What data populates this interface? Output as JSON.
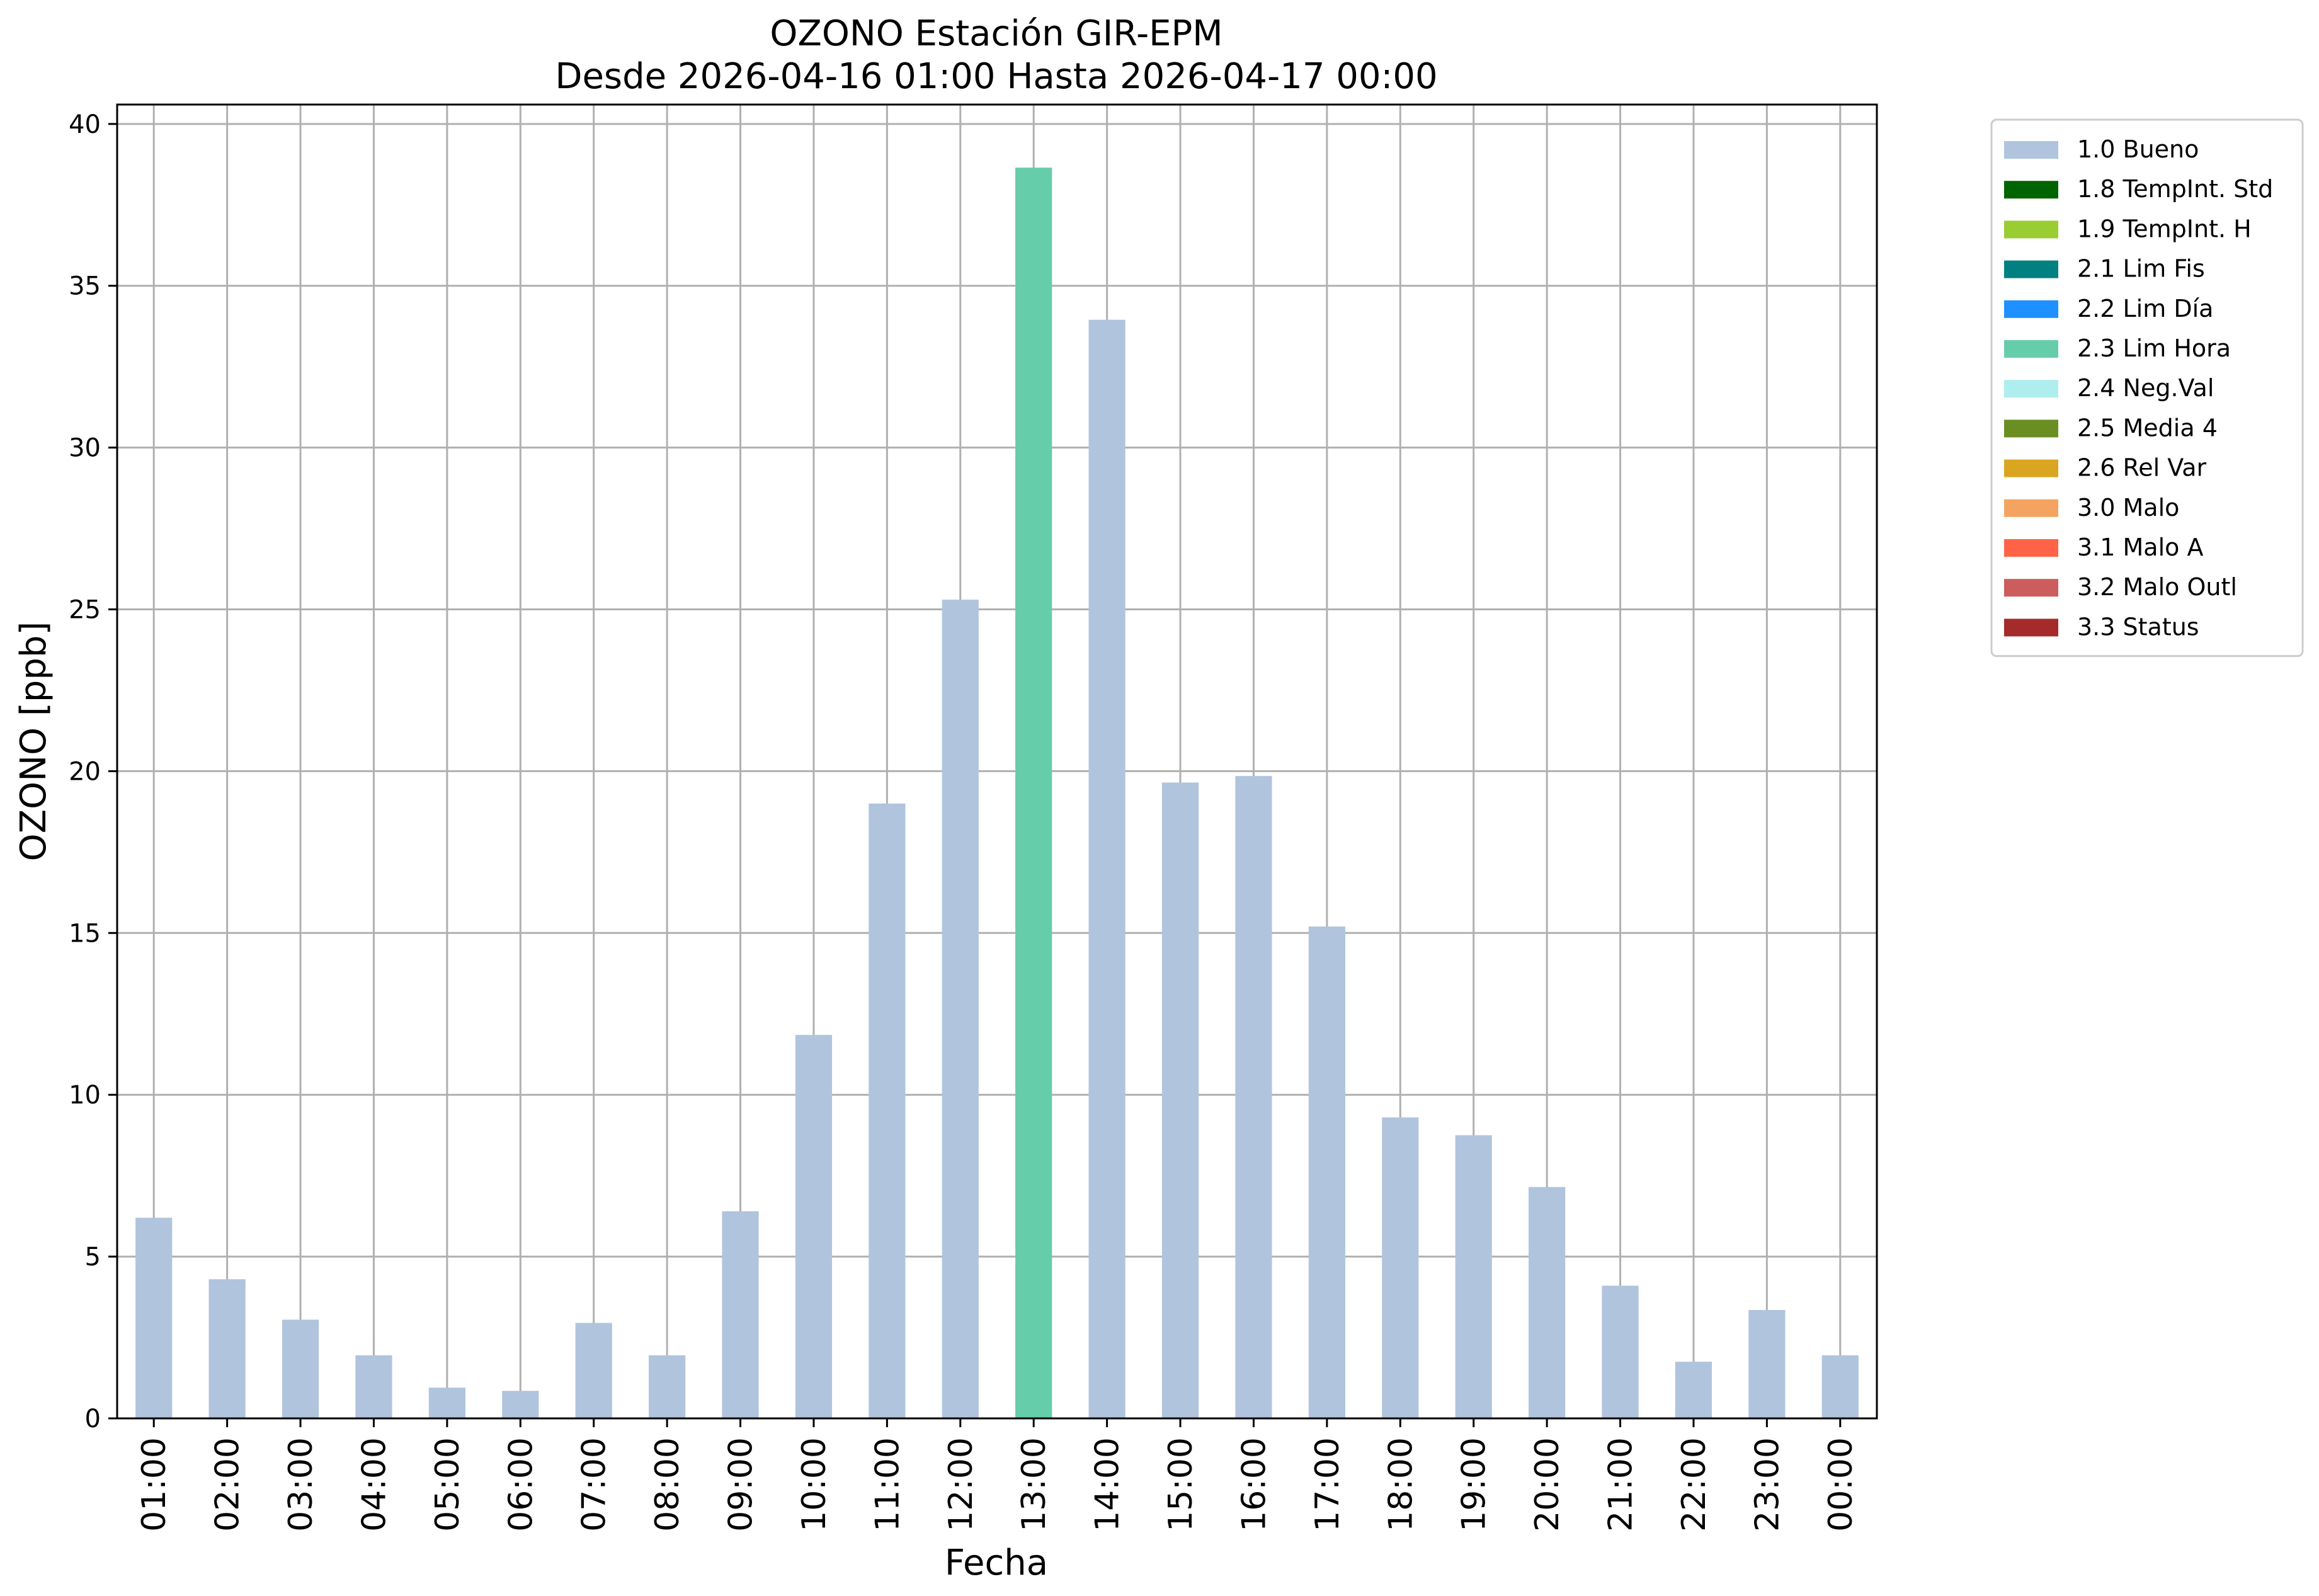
{
  "chart_data": {
    "type": "bar",
    "title": "OZONO Estación GIR-EPM",
    "subtitle": "Desde 2026-04-16 01:00 Hasta 2026-04-17 00:00",
    "xlabel": "Fecha",
    "ylabel": "OZONO [ppb]",
    "ylim": [
      0,
      40.6
    ],
    "yticks": [
      0,
      5,
      10,
      15,
      20,
      25,
      30,
      35,
      40
    ],
    "grid": true,
    "legend_position": "outside-top-right",
    "categories": [
      "01:00",
      "02:00",
      "03:00",
      "04:00",
      "05:00",
      "06:00",
      "07:00",
      "08:00",
      "09:00",
      "10:00",
      "11:00",
      "12:00",
      "13:00",
      "14:00",
      "15:00",
      "16:00",
      "17:00",
      "18:00",
      "19:00",
      "20:00",
      "21:00",
      "22:00",
      "23:00",
      "00:00"
    ],
    "values": [
      6.2,
      4.3,
      3.05,
      1.95,
      0.95,
      0.85,
      2.95,
      1.95,
      6.4,
      11.85,
      19.0,
      25.3,
      38.65,
      33.95,
      19.65,
      19.85,
      15.2,
      9.3,
      8.75,
      7.15,
      4.1,
      1.75,
      3.35,
      1.95
    ],
    "bar_flags": [
      "1.0 Bueno",
      "1.0 Bueno",
      "1.0 Bueno",
      "1.0 Bueno",
      "1.0 Bueno",
      "1.0 Bueno",
      "1.0 Bueno",
      "1.0 Bueno",
      "1.0 Bueno",
      "1.0 Bueno",
      "1.0 Bueno",
      "1.0 Bueno",
      "2.3 Lim Hora",
      "1.0 Bueno",
      "1.0 Bueno",
      "1.0 Bueno",
      "1.0 Bueno",
      "1.0 Bueno",
      "1.0 Bueno",
      "1.0 Bueno",
      "1.0 Bueno",
      "1.0 Bueno",
      "1.0 Bueno",
      "1.0 Bueno"
    ],
    "legend": [
      {
        "label": "1.0 Bueno",
        "color": "#b0c4de"
      },
      {
        "label": "1.8 TempInt. Std",
        "color": "#006400"
      },
      {
        "label": "1.9 TempInt. H",
        "color": "#9acd32"
      },
      {
        "label": "2.1 Lim Fis",
        "color": "#008080"
      },
      {
        "label": "2.2 Lim Día",
        "color": "#1e90ff"
      },
      {
        "label": "2.3 Lim Hora",
        "color": "#66cdaa"
      },
      {
        "label": "2.4 Neg.Val",
        "color": "#afeeee"
      },
      {
        "label": "2.5 Media 4",
        "color": "#6b8e23"
      },
      {
        "label": "2.6 Rel Var",
        "color": "#daa520"
      },
      {
        "label": "3.0 Malo",
        "color": "#f4a460"
      },
      {
        "label": "3.1 Malo A",
        "color": "#ff6347"
      },
      {
        "label": "3.2 Malo Outl",
        "color": "#cd5c5c"
      },
      {
        "label": "3.3 Status",
        "color": "#a52a2a"
      }
    ]
  }
}
